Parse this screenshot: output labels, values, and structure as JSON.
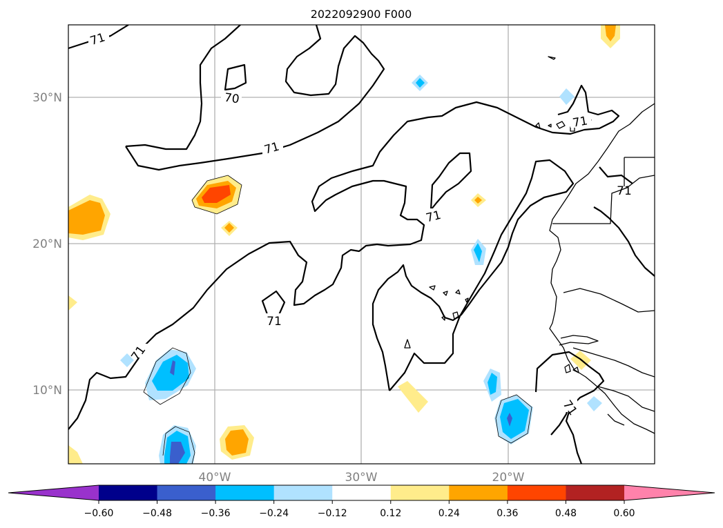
{
  "title": "2022092900 F000",
  "lat_labels": [
    "30°N",
    "20°N",
    "10°N"
  ],
  "lon_labels": [
    "40°W",
    "30°W",
    "20°W"
  ],
  "contour_labels": [
    "71",
    "70",
    "71",
    "71",
    "71",
    "71",
    "71",
    "71"
  ],
  "colorbar": {
    "ticks": [
      "−0.60",
      "−0.48",
      "−0.36",
      "−0.24",
      "−0.12",
      "0.12",
      "0.24",
      "0.36",
      "0.48",
      "0.60"
    ],
    "colors": {
      "under": "#9932cc",
      "bins": [
        "#00008b",
        "#3a5fcd",
        "#00bfff",
        "#b0e2ff",
        "#ffffff",
        "#ffec8b",
        "#ffa500",
        "#ff4500",
        "#b22222"
      ],
      "over": "#ff82ab"
    }
  },
  "chart_data": {
    "type": "heatmap",
    "title": "2022092900 F000",
    "lat_range_N": [
      5,
      35
    ],
    "lon_range_W": [
      50,
      10
    ],
    "gridlines": true,
    "contour_value": 71,
    "other_contour_value": 70,
    "levels": [
      -0.6,
      -0.48,
      -0.36,
      -0.24,
      -0.12,
      0.12,
      0.24,
      0.36,
      0.48,
      0.6
    ],
    "extend": "both"
  }
}
